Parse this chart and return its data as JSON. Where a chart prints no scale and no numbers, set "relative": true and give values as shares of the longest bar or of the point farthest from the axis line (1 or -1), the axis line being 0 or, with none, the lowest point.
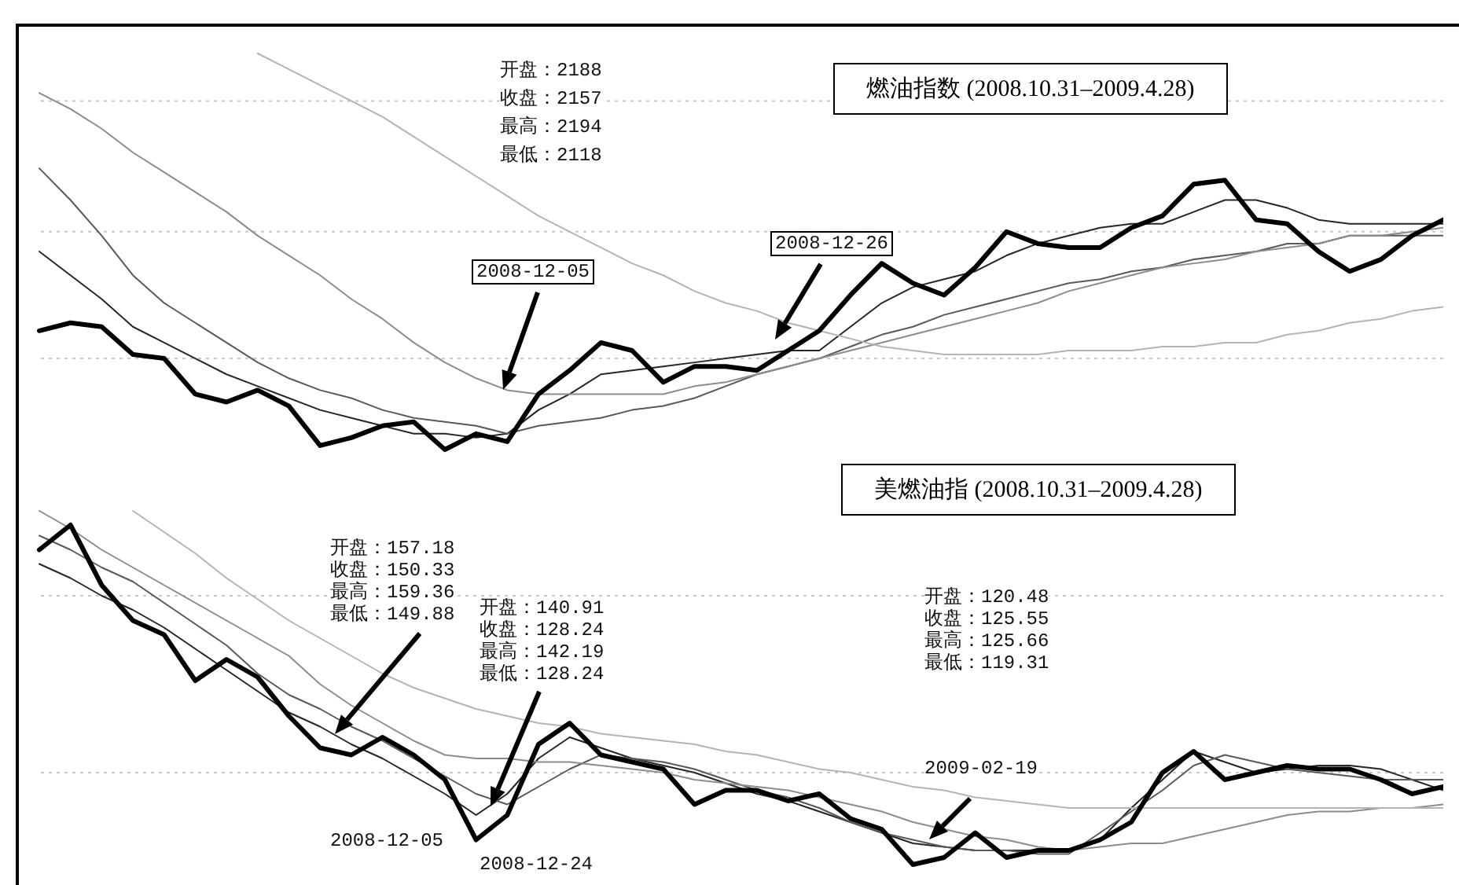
{
  "chart_data": [
    {
      "type": "line",
      "title": "燃油指数 (2008.10.31–2009.4.28)",
      "relative": true,
      "categories": [
        null,
        null,
        null,
        null,
        null,
        null,
        null,
        null,
        null,
        null,
        null,
        null,
        null,
        null,
        null,
        null,
        null,
        null,
        null,
        null,
        null,
        null,
        null,
        null,
        null,
        null,
        null,
        null,
        null,
        null,
        null,
        null,
        null,
        null,
        null,
        null,
        null,
        null,
        null,
        null,
        null,
        null,
        null,
        null,
        null,
        null
      ],
      "series": [
        {
          "color": "#000000",
          "values": [
            0.3,
            0.32,
            0.31,
            0.24,
            0.23,
            0.14,
            0.12,
            0.15,
            0.11,
            0.01,
            0.03,
            0.06,
            0.07,
            0,
            0.04,
            0.02,
            0.14,
            0.2,
            0.27,
            0.25,
            0.17,
            0.21,
            0.21,
            0.2,
            0.25,
            0.3,
            0.39,
            0.47,
            0.42,
            0.39,
            0.46,
            0.55,
            0.52,
            0.51,
            0.51,
            0.56,
            0.59,
            0.67,
            0.68,
            0.58,
            0.57,
            0.5,
            0.45,
            0.48,
            0.54,
            0.58
          ]
        },
        {
          "color": "#b4b4b4",
          "values": [
            null,
            null,
            null,
            null,
            null,
            null,
            null,
            1.0,
            0.96,
            0.92,
            0.88,
            0.84,
            0.79,
            0.74,
            0.69,
            0.64,
            0.59,
            0.55,
            0.51,
            0.47,
            0.44,
            0.4,
            0.37,
            0.35,
            0.32,
            0.3,
            0.28,
            0.26,
            0.25,
            0.24,
            0.24,
            0.24,
            0.24,
            0.25,
            0.25,
            0.25,
            0.26,
            0.26,
            0.27,
            0.27,
            0.29,
            0.3,
            0.32,
            0.33,
            0.35,
            0.36
          ]
        },
        {
          "color": "#8c8c8c",
          "values": [
            0.9,
            0.86,
            0.81,
            0.75,
            0.7,
            0.65,
            0.6,
            0.54,
            0.49,
            0.44,
            0.38,
            0.33,
            0.27,
            0.22,
            0.18,
            0.15,
            0.14,
            0.14,
            0.14,
            0.14,
            0.14,
            0.16,
            0.17,
            0.19,
            0.21,
            0.23,
            0.25,
            0.27,
            0.29,
            0.31,
            0.33,
            0.35,
            0.37,
            0.4,
            0.42,
            0.44,
            0.46,
            0.47,
            0.48,
            0.5,
            0.51,
            0.52,
            0.54,
            0.54,
            0.55,
            0.56
          ]
        },
        {
          "color": "#595959",
          "values": [
            0.71,
            0.63,
            0.54,
            0.44,
            0.37,
            0.32,
            0.27,
            0.22,
            0.18,
            0.15,
            0.13,
            0.1,
            0.08,
            0.07,
            0.06,
            0.04,
            0.06,
            0.07,
            0.08,
            0.1,
            0.11,
            0.13,
            0.16,
            0.19,
            0.21,
            0.23,
            0.26,
            0.29,
            0.31,
            0.34,
            0.36,
            0.38,
            0.4,
            0.42,
            0.43,
            0.45,
            0.46,
            0.48,
            0.49,
            0.5,
            0.52,
            0.52,
            0.54,
            0.54,
            0.54,
            0.54
          ]
        },
        {
          "color": "#262626",
          "values": [
            0.5,
            0.44,
            0.38,
            0.31,
            0.27,
            0.23,
            0.19,
            0.16,
            0.13,
            0.1,
            0.08,
            0.06,
            0.04,
            0.04,
            0.03,
            0.04,
            0.1,
            0.14,
            0.19,
            0.2,
            0.21,
            0.22,
            0.23,
            0.24,
            0.25,
            0.25,
            0.31,
            0.37,
            0.41,
            0.43,
            0.45,
            0.49,
            0.52,
            0.54,
            0.56,
            0.57,
            0.57,
            0.6,
            0.63,
            0.63,
            0.61,
            0.58,
            0.57,
            0.57,
            0.57,
            0.57
          ]
        }
      ],
      "ref_lines": [
        {
          "axis": "y",
          "value": 0.88,
          "color": "#c8c8c8",
          "line_style": "dotted"
        },
        {
          "axis": "y",
          "value": 0.55,
          "color": "#c8c8c8",
          "line_style": "dotted"
        },
        {
          "axis": "y",
          "value": 0.23,
          "color": "#c8c8c8",
          "line_style": "dotted"
        }
      ],
      "annotations": [
        "开盘：2188",
        "收盘：2157",
        "最高：2194",
        "最低：2118",
        "2008-12-05",
        "2008-12-26"
      ]
    },
    {
      "type": "line",
      "title": "美燃油指 (2008.10.31–2009.4.28)",
      "relative": true,
      "categories": [
        null,
        null,
        null,
        null,
        null,
        null,
        null,
        null,
        null,
        null,
        null,
        null,
        null,
        null,
        null,
        null,
        null,
        null,
        null,
        null,
        null,
        null,
        null,
        null,
        null,
        null,
        null,
        null,
        null,
        null,
        null,
        null,
        null,
        null,
        null,
        null,
        null,
        null,
        null,
        null,
        null,
        null,
        null,
        null,
        null,
        null
      ],
      "series": [
        {
          "color": "#000000",
          "values": [
            0.89,
            0.96,
            0.79,
            0.69,
            0.65,
            0.52,
            0.58,
            0.53,
            0.42,
            0.33,
            0.31,
            0.36,
            0.31,
            0.24,
            0.07,
            0.14,
            0.34,
            0.4,
            0.31,
            0.29,
            0.27,
            0.17,
            0.21,
            0.21,
            0.18,
            0.2,
            0.13,
            0.1,
            0,
            0.02,
            0.09,
            0.02,
            0.04,
            0.04,
            0.07,
            0.12,
            0.26,
            0.32,
            0.24,
            0.26,
            0.28,
            0.27,
            0.27,
            0.24,
            0.2,
            0.22
          ]
        },
        {
          "color": "#b4b4b4",
          "values": [
            null,
            null,
            null,
            1.0,
            0.94,
            0.88,
            0.81,
            0.75,
            0.69,
            0.64,
            0.59,
            0.54,
            0.5,
            0.47,
            0.44,
            0.42,
            0.4,
            0.39,
            0.37,
            0.36,
            0.35,
            0.34,
            0.32,
            0.31,
            0.29,
            0.27,
            0.26,
            0.24,
            0.22,
            0.21,
            0.19,
            0.18,
            0.17,
            0.16,
            0.16,
            0.16,
            0.16,
            0.16,
            0.16,
            0.16,
            0.16,
            0.16,
            0.16,
            0.16,
            0.16,
            0.16
          ]
        },
        {
          "color": "#8c8c8c",
          "values": [
            1.0,
            0.95,
            0.89,
            0.84,
            0.79,
            0.74,
            0.69,
            0.64,
            0.59,
            0.51,
            0.45,
            0.4,
            0.35,
            0.31,
            0.3,
            0.3,
            0.29,
            0.29,
            0.28,
            0.27,
            0.26,
            0.24,
            0.23,
            0.22,
            0.21,
            0.19,
            0.17,
            0.15,
            0.12,
            0.1,
            0.08,
            0.07,
            0.05,
            0.04,
            0.05,
            0.06,
            0.06,
            0.08,
            0.1,
            0.12,
            0.14,
            0.15,
            0.15,
            0.16,
            0.16,
            0.17
          ]
        },
        {
          "color": "#595959",
          "values": [
            0.93,
            0.89,
            0.84,
            0.8,
            0.74,
            0.68,
            0.62,
            0.54,
            0.48,
            0.44,
            0.39,
            0.35,
            0.3,
            0.25,
            0.2,
            0.17,
            0.22,
            0.27,
            0.31,
            0.3,
            0.29,
            0.27,
            0.24,
            0.21,
            0.19,
            0.16,
            0.12,
            0.09,
            0.07,
            0.05,
            0.04,
            0.04,
            0.03,
            0.03,
            0.09,
            0.15,
            0.21,
            0.28,
            0.31,
            0.29,
            0.27,
            0.26,
            0.25,
            0.24,
            0.24,
            0.24
          ]
        },
        {
          "color": "#262626",
          "values": [
            0.85,
            0.81,
            0.76,
            0.72,
            0.67,
            0.61,
            0.55,
            0.49,
            0.43,
            0.39,
            0.34,
            0.3,
            0.25,
            0.2,
            0.14,
            0.2,
            0.3,
            0.36,
            0.33,
            0.3,
            0.28,
            0.26,
            0.23,
            0.2,
            0.18,
            0.15,
            0.12,
            0.09,
            0.06,
            0.05,
            0.04,
            0.04,
            0.04,
            0.04,
            0.07,
            0.16,
            0.24,
            0.32,
            0.29,
            0.26,
            0.27,
            0.28,
            0.28,
            0.27,
            0.24,
            0.21
          ]
        }
      ],
      "ref_lines": [
        {
          "axis": "y",
          "value": 0.76,
          "color": "#c8c8c8",
          "line_style": "dotted"
        },
        {
          "axis": "y",
          "value": 0.26,
          "color": "#c8c8c8",
          "line_style": "dotted"
        }
      ],
      "annotations": [
        "开盘：157.18",
        "收盘：150.33",
        "最高：159.36",
        "最低：149.88",
        "开盘：140.91",
        "收盘：128.24",
        "最高：142.19",
        "最低：128.24",
        "开盘：120.48",
        "收盘：125.55",
        "最高：125.66",
        "最低：119.31",
        "2008-12-05",
        "2008-12-24",
        "2009-02-19"
      ]
    }
  ]
}
